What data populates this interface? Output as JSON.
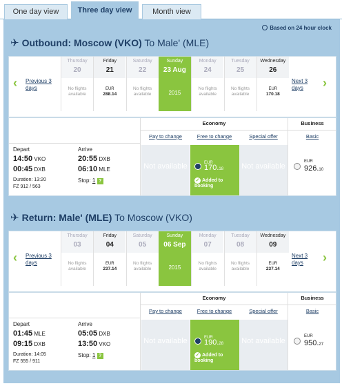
{
  "tabs": [
    {
      "label": "One day view"
    },
    {
      "label": "Three day view"
    },
    {
      "label": "Month view"
    }
  ],
  "note": "Based on 24 hour clock",
  "outbound": {
    "dir": "Outbound:",
    "from": "Moscow (VKO)",
    "to": "To Male' (MLE)",
    "prev": "Previous 3 days",
    "next": "Next 3 days",
    "days": [
      {
        "name": "Thursday",
        "num": "20",
        "text": "No flights available",
        "cur": "",
        "price": ""
      },
      {
        "name": "Friday",
        "num": "21",
        "text": "",
        "cur": "EUR",
        "price": "288.14"
      },
      {
        "name": "Saturday",
        "num": "22",
        "text": "No flights available",
        "cur": "",
        "price": ""
      },
      {
        "name": "Sunday",
        "num": "23 Aug",
        "text": "2015",
        "cur": "",
        "price": ""
      },
      {
        "name": "Monday",
        "num": "24",
        "text": "No flights available",
        "cur": "",
        "price": ""
      },
      {
        "name": "Tuesday",
        "num": "25",
        "text": "No flights available",
        "cur": "",
        "price": ""
      },
      {
        "name": "Wednesday",
        "num": "26",
        "text": "",
        "cur": "EUR",
        "price": "170.18"
      }
    ],
    "economy": "Economy",
    "business": "Business",
    "pay": "Pay to change",
    "free": "Free to change",
    "special": "Special offer",
    "basic": "Basic",
    "depart": "Depart",
    "arrive": "Arrive",
    "d1t": "14:50",
    "d1a": "VKO",
    "a1t": "20:55",
    "a1a": "DXB",
    "d2t": "00:45",
    "d2a": "DXB",
    "a2t": "06:10",
    "a2a": "MLE",
    "duration": "Duration: 13:20",
    "flights": "FZ 912 / 563",
    "stop": "Stop:",
    "stopn": "1",
    "info": "?",
    "na1": "Not available",
    "na2": "Not available",
    "eco_cur": "EUR",
    "eco_price": "170.",
    "eco_cents": "18",
    "added": "Added to booking",
    "bus_cur": "EUR",
    "bus_price": "926.",
    "bus_cents": "10"
  },
  "return": {
    "dir": "Return:",
    "from": "Male' (MLE)",
    "to": "To Moscow (VKO)",
    "prev": "Previous 3 days",
    "next": "Next 3 days",
    "days": [
      {
        "name": "Thursday",
        "num": "03",
        "text": "No flights available",
        "cur": "",
        "price": ""
      },
      {
        "name": "Friday",
        "num": "04",
        "text": "",
        "cur": "EUR",
        "price": "237.14"
      },
      {
        "name": "Saturday",
        "num": "05",
        "text": "No flights available",
        "cur": "",
        "price": ""
      },
      {
        "name": "Sunday",
        "num": "06 Sep",
        "text": "2015",
        "cur": "",
        "price": ""
      },
      {
        "name": "Monday",
        "num": "07",
        "text": "No flights available",
        "cur": "",
        "price": ""
      },
      {
        "name": "Tuesday",
        "num": "08",
        "text": "No flights available",
        "cur": "",
        "price": ""
      },
      {
        "name": "Wednesday",
        "num": "09",
        "text": "",
        "cur": "EUR",
        "price": "237.14"
      }
    ],
    "economy": "Economy",
    "business": "Business",
    "pay": "Pay to change",
    "free": "Free to change",
    "special": "Special offer",
    "basic": "Basic",
    "depart": "Depart",
    "arrive": "Arrive",
    "d1t": "01:45",
    "d1a": "MLE",
    "a1t": "05:05",
    "a1a": "DXB",
    "d2t": "09:15",
    "d2a": "DXB",
    "a2t": "13:50",
    "a2a": "VKO",
    "duration": "Duration: 14:05",
    "flights": "FZ 555 / 911",
    "stop": "Stop:",
    "stopn": "1",
    "info": "?",
    "na1": "Not available",
    "na2": "Not available",
    "eco_cur": "EUR",
    "eco_price": "190.",
    "eco_cents": "28",
    "added": "Added to booking",
    "bus_cur": "EUR",
    "bus_price": "950.",
    "bus_cents": "27"
  },
  "colors": {
    "accent": "#8ac53f",
    "navy": "#1f3f66",
    "panel": "#a7c9e2"
  }
}
